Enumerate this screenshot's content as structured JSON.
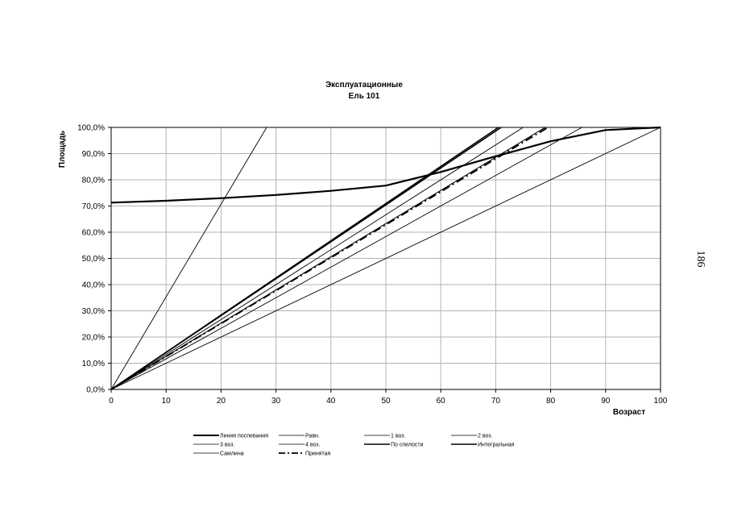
{
  "page_number": "186",
  "chart_data": {
    "type": "line",
    "title": "Эксплуатационные",
    "subtitle": "Ель 101",
    "xlabel": "Возраст",
    "ylabel": "Площадь",
    "xlim": [
      0,
      100
    ],
    "ylim": [
      0,
      100
    ],
    "xticks": [
      "0",
      "10",
      "20",
      "30",
      "40",
      "50",
      "60",
      "70",
      "80",
      "90",
      "100"
    ],
    "yticks": [
      "0,0%",
      "10,0%",
      "20,0%",
      "30,0%",
      "40,0%",
      "50,0%",
      "60,0%",
      "70,0%",
      "80,0%",
      "90,0%",
      "100,0%"
    ],
    "grid": true,
    "legend_position": "bottom",
    "series": [
      {
        "name": "Линия поспевания",
        "style": "thick",
        "x": [
          0,
          10,
          20,
          30,
          40,
          50,
          60,
          70,
          80,
          90,
          100
        ],
        "y": [
          71.3,
          72.0,
          73.0,
          74.2,
          75.8,
          77.8,
          83.0,
          89.0,
          94.7,
          99.0,
          100
        ]
      },
      {
        "name": "Равн.",
        "style": "thin",
        "x": [
          0,
          100
        ],
        "y": [
          0,
          100
        ]
      },
      {
        "name": "1 воз.",
        "style": "thin",
        "x": [
          0,
          85.7
        ],
        "y": [
          0,
          100
        ]
      },
      {
        "name": "2 воз.",
        "style": "thin",
        "x": [
          0,
          75
        ],
        "y": [
          0,
          100
        ]
      },
      {
        "name": "3 воз.",
        "style": "thin",
        "x": [
          0,
          28.3
        ],
        "y": [
          0,
          100
        ]
      },
      {
        "name": "4 воз.",
        "style": "thin",
        "x": [
          0,
          79
        ],
        "y": [
          0,
          100
        ]
      },
      {
        "name": "По спелости",
        "style": "medium",
        "x": [
          0,
          71
        ],
        "y": [
          0,
          100
        ]
      },
      {
        "name": "Интегральная",
        "style": "medium",
        "x": [
          0,
          70.5
        ],
        "y": [
          0,
          100
        ]
      },
      {
        "name": "Самлина",
        "style": "thin",
        "x": [
          0,
          79
        ],
        "y": [
          0,
          100
        ]
      },
      {
        "name": "Принятая",
        "style": "dashed",
        "x": [
          0,
          79.5
        ],
        "y": [
          0,
          100
        ]
      }
    ]
  }
}
